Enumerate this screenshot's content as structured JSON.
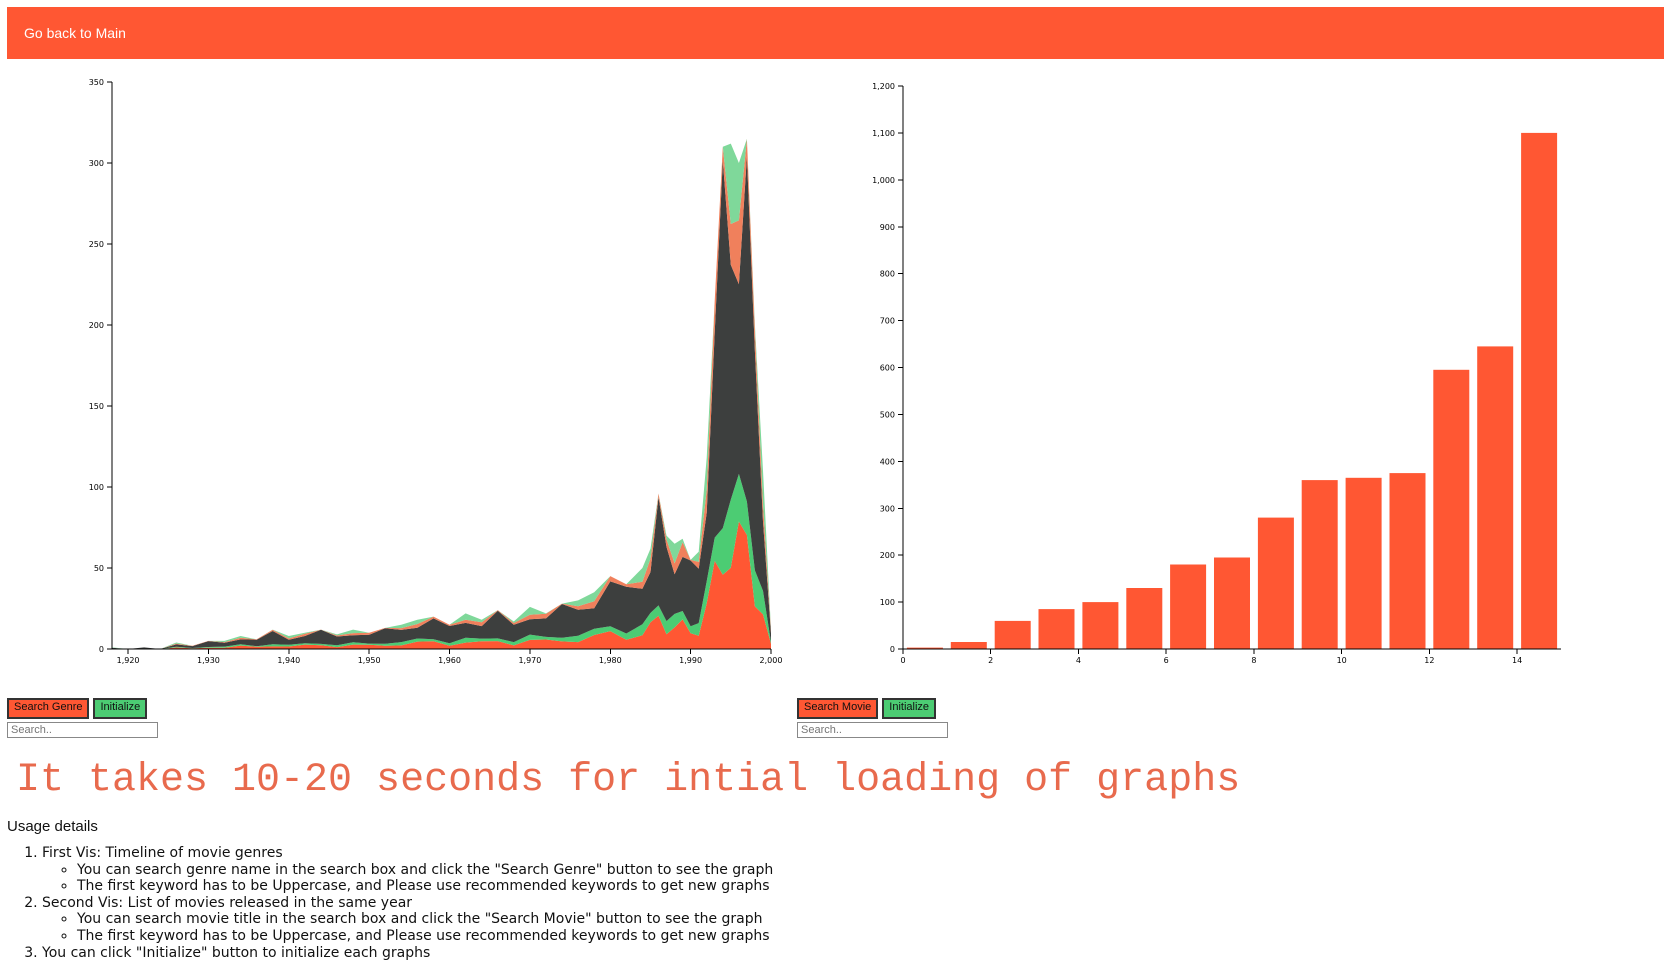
{
  "nav": {
    "back_link": "Go back to Main"
  },
  "colors": {
    "accent": "#ff5733",
    "green": "#4ccc73",
    "dark": "#3d3f3e",
    "notice": "#e86a4d"
  },
  "left_controls": {
    "search_button": "Search Genre",
    "init_button": "Initialize",
    "placeholder": "Search.."
  },
  "right_controls": {
    "search_button": "Search Movie",
    "init_button": "Initialize",
    "placeholder": "Search.."
  },
  "notice": "It takes 10-20 seconds for intial loading of graphs",
  "usage": {
    "title": "Usage details",
    "items": [
      {
        "text": "First Vis: Timeline of movie genres",
        "sub": [
          "You can search genre name in the search box and click the \"Search Genre\" button to see the graph",
          "The first keyword has to be Uppercase, and Please use recommended keywords to get new graphs"
        ]
      },
      {
        "text": "Second Vis: List of movies released in the same year",
        "sub": [
          "You can search movie title in the search box and click the \"Search Movie\" button to see the graph",
          "The first keyword has to be Uppercase, and Please use recommended keywords to get new graphs"
        ]
      },
      {
        "text": "You can click \"Initialize\" button to initialize each graphs",
        "sub": []
      }
    ]
  },
  "chart_data": [
    {
      "type": "area",
      "title": "Timeline of movie genres",
      "stacked": true,
      "xlim": [
        1918,
        2000
      ],
      "ylim": [
        0,
        350
      ],
      "xticks": [
        1920,
        1930,
        1940,
        1950,
        1960,
        1970,
        1980,
        1990,
        2000
      ],
      "xtick_labels": [
        "1,920",
        "1,930",
        "1,940",
        "1,950",
        "1,960",
        "1,970",
        "1,980",
        "1,990",
        "2,000"
      ],
      "yticks": [
        0,
        50,
        100,
        150,
        200,
        250,
        300,
        350
      ],
      "x": [
        1918,
        1920,
        1922,
        1924,
        1926,
        1928,
        1930,
        1932,
        1934,
        1936,
        1938,
        1940,
        1942,
        1944,
        1946,
        1948,
        1950,
        1952,
        1954,
        1956,
        1958,
        1960,
        1962,
        1964,
        1966,
        1968,
        1970,
        1972,
        1974,
        1976,
        1978,
        1980,
        1982,
        1984,
        1985,
        1986,
        1987,
        1988,
        1989,
        1990,
        1991,
        1992,
        1993,
        1994,
        1995,
        1996,
        1997,
        1998,
        1999,
        2000
      ],
      "total": [
        1,
        0,
        1,
        0,
        4,
        2,
        5,
        5,
        8,
        6,
        12,
        8,
        10,
        12,
        9,
        12,
        10,
        13,
        15,
        18,
        20,
        15,
        22,
        18,
        24,
        17,
        26,
        22,
        28,
        30,
        35,
        45,
        40,
        50,
        62,
        96,
        70,
        65,
        68,
        55,
        60,
        118,
        215,
        310,
        312,
        300,
        315,
        200,
        110,
        12
      ],
      "series": [
        {
          "name": "red",
          "share": 0.2
        },
        {
          "name": "green",
          "share": 0.1
        },
        {
          "name": "dark",
          "share": 0.55
        },
        {
          "name": "orange",
          "share": 0.1
        },
        {
          "name": "light-green",
          "share": 0.05
        }
      ]
    },
    {
      "type": "bar",
      "title": "List of movies released in the same year",
      "categories": [
        0,
        1,
        2,
        3,
        4,
        5,
        6,
        7,
        8,
        9,
        10,
        11,
        12,
        13,
        14
      ],
      "values": [
        3,
        15,
        60,
        85,
        100,
        130,
        180,
        195,
        280,
        360,
        365,
        375,
        595,
        645,
        1100
      ],
      "xlim": [
        0,
        15
      ],
      "ylim": [
        0,
        1200
      ],
      "xticks": [
        0,
        2,
        4,
        6,
        8,
        10,
        12,
        14
      ],
      "yticks": [
        0,
        100,
        200,
        300,
        400,
        500,
        600,
        700,
        800,
        900,
        1000,
        1100,
        1200
      ],
      "ytick_labels": [
        "0",
        "100",
        "200",
        "300",
        "400",
        "500",
        "600",
        "700",
        "800",
        "900",
        "1,000",
        "1,100",
        "1,200"
      ],
      "color": "#ff5733"
    }
  ]
}
